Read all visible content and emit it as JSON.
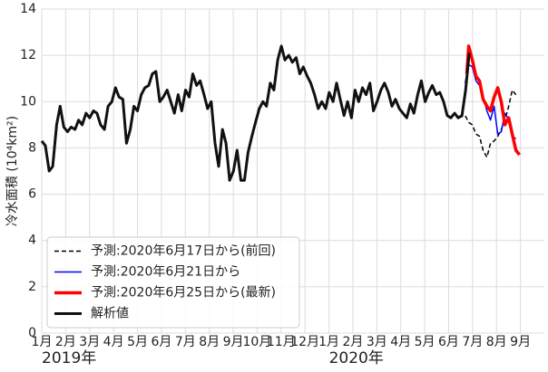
{
  "chart_data": {
    "type": "line",
    "ylabel": "冷水面積 (10⁴km²)",
    "xlim": [
      0,
      21.0
    ],
    "ylim": [
      0,
      14
    ],
    "yticks": [
      0,
      2,
      4,
      6,
      8,
      10,
      12,
      14
    ],
    "xticks": [
      {
        "value": 0,
        "label": "1月"
      },
      {
        "value": 1,
        "label": "2月"
      },
      {
        "value": 2,
        "label": "3月"
      },
      {
        "value": 3,
        "label": "4月"
      },
      {
        "value": 4,
        "label": "5月"
      },
      {
        "value": 5,
        "label": "6月"
      },
      {
        "value": 6,
        "label": "7月"
      },
      {
        "value": 7,
        "label": "8月"
      },
      {
        "value": 8,
        "label": "9月"
      },
      {
        "value": 9,
        "label": "10月"
      },
      {
        "value": 10,
        "label": "11月"
      },
      {
        "value": 11,
        "label": "12月"
      },
      {
        "value": 12,
        "label": "1月"
      },
      {
        "value": 13,
        "label": "2月"
      },
      {
        "value": 14,
        "label": "3月"
      },
      {
        "value": 15,
        "label": "4月"
      },
      {
        "value": 16,
        "label": "5月"
      },
      {
        "value": 17,
        "label": "6月"
      },
      {
        "value": 18,
        "label": "7月"
      },
      {
        "value": 19,
        "label": "8月"
      },
      {
        "value": 20,
        "label": "9月"
      }
    ],
    "x_year_labels": [
      {
        "value": 0,
        "label": "2019年"
      },
      {
        "value": 12,
        "label": "2020年"
      }
    ],
    "grid": true,
    "legend": "lower left",
    "series": [
      {
        "name": "予測:2020年6月17日から(前回)",
        "color": "#000000",
        "dash": true,
        "width": 1.5,
        "x": [
          17.42,
          17.69,
          17.84,
          17.99,
          18.14,
          18.29,
          18.44,
          18.6,
          18.75,
          18.9,
          19.05,
          19.2,
          19.35,
          19.51,
          19.66,
          19.81
        ],
        "values": [
          9.3,
          9.4,
          9.1,
          9.0,
          8.6,
          8.5,
          7.9,
          7.6,
          8.2,
          8.3,
          8.5,
          8.8,
          9.2,
          9.8,
          10.5,
          10.3
        ]
      },
      {
        "name": "予測:2020年6月21日から",
        "color": "#0000ff",
        "dash": false,
        "width": 1.5,
        "x": [
          17.69,
          17.84,
          17.99,
          18.14,
          18.29,
          18.44,
          18.6,
          18.75,
          18.9,
          19.05,
          19.2,
          19.35,
          19.51,
          19.66,
          19.81
        ],
        "values": [
          10.8,
          11.6,
          11.5,
          10.9,
          10.7,
          10.2,
          9.6,
          9.2,
          9.8,
          8.6,
          8.7,
          9.5,
          9.2,
          8.5,
          8.4
        ]
      },
      {
        "name": "予測:2020年6月25日から(最新)",
        "color": "#ff0000",
        "dash": false,
        "width": 3.5,
        "x": [
          17.76,
          17.84,
          17.99,
          18.14,
          18.29,
          18.44,
          18.6,
          18.75,
          18.9,
          19.05,
          19.2,
          19.35,
          19.51,
          19.66,
          19.81,
          19.96
        ],
        "values": [
          11.2,
          12.4,
          11.8,
          11.1,
          10.9,
          10.1,
          9.8,
          9.6,
          10.2,
          10.6,
          10.0,
          9.0,
          9.3,
          8.6,
          7.9,
          7.7
        ]
      },
      {
        "name": "解析値",
        "color": "#111111",
        "dash": false,
        "width": 3,
        "x": [
          0,
          0.15,
          0.31,
          0.46,
          0.62,
          0.77,
          0.92,
          1.08,
          1.23,
          1.39,
          1.54,
          1.69,
          1.85,
          2.0,
          2.16,
          2.31,
          2.46,
          2.62,
          2.77,
          2.93,
          3.08,
          3.23,
          3.39,
          3.54,
          3.7,
          3.85,
          4.0,
          4.16,
          4.31,
          4.47,
          4.62,
          4.77,
          4.93,
          5.08,
          5.24,
          5.39,
          5.54,
          5.7,
          5.85,
          6.01,
          6.16,
          6.31,
          6.47,
          6.62,
          6.78,
          6.93,
          7.08,
          7.24,
          7.39,
          7.55,
          7.7,
          7.85,
          8.01,
          8.16,
          8.32,
          8.47,
          8.62,
          8.78,
          8.93,
          9.09,
          9.24,
          9.39,
          9.55,
          9.7,
          9.86,
          10.01,
          10.16,
          10.32,
          10.47,
          10.63,
          10.78,
          10.93,
          11.09,
          11.24,
          11.4,
          11.55,
          11.7,
          11.86,
          12.01,
          12.17,
          12.32,
          12.47,
          12.63,
          12.78,
          12.94,
          13.09,
          13.24,
          13.4,
          13.55,
          13.71,
          13.86,
          14.01,
          14.17,
          14.32,
          14.48,
          14.63,
          14.78,
          14.94,
          15.09,
          15.25,
          15.4,
          15.55,
          15.71,
          15.86,
          16.02,
          16.17,
          16.32,
          16.48,
          16.63,
          16.79,
          16.94,
          17.09,
          17.25,
          17.4,
          17.56,
          17.71,
          17.86
        ],
        "values": [
          8.3,
          8.1,
          7.0,
          7.2,
          9.0,
          9.8,
          8.9,
          8.7,
          8.9,
          8.8,
          9.2,
          9.0,
          9.5,
          9.3,
          9.6,
          9.5,
          9.0,
          8.8,
          9.8,
          10.0,
          10.6,
          10.2,
          10.1,
          8.2,
          8.8,
          9.8,
          9.6,
          10.3,
          10.6,
          10.7,
          11.2,
          11.3,
          10.0,
          10.2,
          10.5,
          10.0,
          9.5,
          10.3,
          9.6,
          10.5,
          10.2,
          11.2,
          10.7,
          10.9,
          10.3,
          9.7,
          10.0,
          8.2,
          7.2,
          8.8,
          8.2,
          6.6,
          7.0,
          7.9,
          6.6,
          6.6,
          7.8,
          8.5,
          9.1,
          9.7,
          10.0,
          9.8,
          10.8,
          10.5,
          11.8,
          12.4,
          11.8,
          12.0,
          11.7,
          11.9,
          11.2,
          11.5,
          11.1,
          10.8,
          10.3,
          9.7,
          10.0,
          9.7,
          10.4,
          10.0,
          10.8,
          10.1,
          9.4,
          10.0,
          9.3,
          10.5,
          10.0,
          10.6,
          10.3,
          10.8,
          9.6,
          10.0,
          10.5,
          10.8,
          10.4,
          9.8,
          10.1,
          9.7,
          9.5,
          9.3,
          9.9,
          9.5,
          10.3,
          10.9,
          10.0,
          10.4,
          10.7,
          10.3,
          10.4,
          10.0,
          9.4,
          9.3,
          9.5,
          9.3,
          9.4,
          10.5,
          12.1
        ]
      }
    ]
  }
}
